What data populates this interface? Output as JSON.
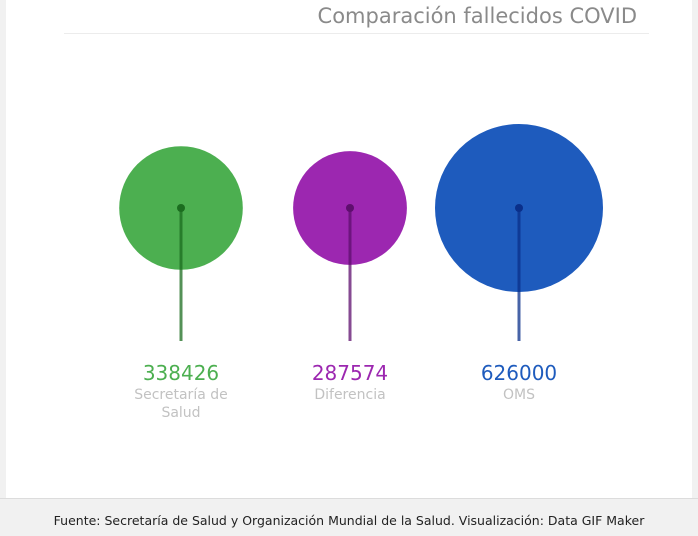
{
  "title": "Comparación fallecidos COVID",
  "footer": "Fuente: Secretaría de Salud y Organización Mundial de la Salud. Visualización: Data GIF Maker",
  "chart_data": {
    "type": "bubble",
    "title": "Comparación fallecidos COVID",
    "categories": [
      "Secretaría de Salud",
      "Diferencia",
      "OMS"
    ],
    "category_label_lines": [
      [
        "Secretaría de",
        "Salud"
      ],
      [
        "Diferencia"
      ],
      [
        "OMS"
      ]
    ],
    "values": [
      338426,
      287574,
      626000
    ],
    "value_labels": [
      "338426",
      "287574",
      "626000"
    ],
    "colors": [
      "#4caf50",
      "#9c27b0",
      "#1e5bbd"
    ],
    "stem_colors": [
      "#1b6d1f",
      "#5e0e6e",
      "#0a2f8a"
    ],
    "grid": false,
    "legend": "none"
  }
}
